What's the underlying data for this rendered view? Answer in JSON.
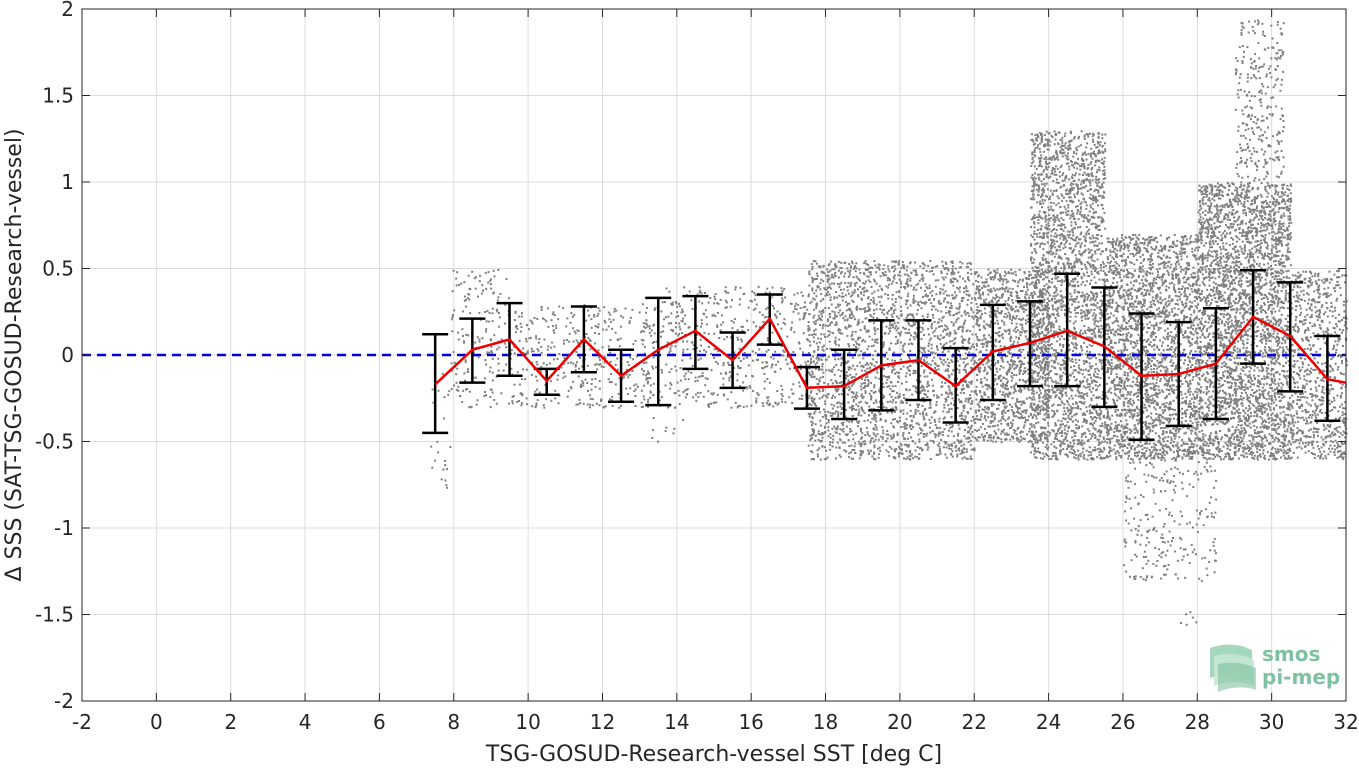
{
  "chart_data": {
    "type": "scatter",
    "xlabel": "TSG-GOSUD-Research-vessel SST [deg C]",
    "ylabel": "Δ SSS (SAT-TSG-GOSUD-Research-vessel)",
    "xlim": [
      -2,
      32
    ],
    "ylim": [
      -2,
      2
    ],
    "x_ticks": [
      -2,
      0,
      2,
      4,
      6,
      8,
      10,
      12,
      14,
      16,
      18,
      20,
      22,
      24,
      26,
      28,
      30,
      32
    ],
    "y_ticks": [
      -2,
      -1.5,
      -1,
      -0.5,
      0,
      0.5,
      1,
      1.5,
      2
    ],
    "x_tick_labels": [
      "-2",
      "0",
      "2",
      "4",
      "6",
      "8",
      "10",
      "12",
      "14",
      "16",
      "18",
      "20",
      "22",
      "24",
      "26",
      "28",
      "30",
      "32"
    ],
    "y_tick_labels": [
      "-2",
      "-1.5",
      "-1",
      "-0.5",
      "0",
      "0.5",
      "1",
      "1.5",
      "2"
    ],
    "grid": true,
    "reference_line": {
      "y": 0,
      "style": "dashed",
      "color": "#0000dd"
    },
    "colors": {
      "scatter": "#7f7f7f",
      "mean_line": "#ee0000",
      "error_bars": "#000000",
      "reference": "#0000dd"
    },
    "binned_stats": {
      "x": [
        7.5,
        8.5,
        9.5,
        10.5,
        11.5,
        12.5,
        13.5,
        14.5,
        15.5,
        16.5,
        17.5,
        18.5,
        19.5,
        20.5,
        21.5,
        22.5,
        23.5,
        24.5,
        25.5,
        26.5,
        27.5,
        28.5,
        29.5,
        30.5,
        31.5,
        32.0
      ],
      "mean": [
        -0.17,
        0.03,
        0.09,
        -0.15,
        0.09,
        -0.12,
        0.03,
        0.14,
        -0.03,
        0.21,
        -0.19,
        -0.18,
        -0.06,
        -0.03,
        -0.18,
        0.02,
        0.07,
        0.14,
        0.05,
        -0.12,
        -0.11,
        -0.05,
        0.22,
        0.11,
        -0.14,
        -0.16
      ],
      "lower": [
        -0.45,
        -0.16,
        -0.12,
        -0.23,
        -0.1,
        -0.27,
        -0.29,
        -0.08,
        -0.19,
        0.06,
        -0.31,
        -0.37,
        -0.32,
        -0.26,
        -0.39,
        -0.26,
        -0.18,
        -0.18,
        -0.3,
        -0.49,
        -0.41,
        -0.37,
        -0.05,
        -0.21,
        -0.38,
        null
      ],
      "upper": [
        0.12,
        0.21,
        0.3,
        -0.08,
        0.28,
        0.03,
        0.33,
        0.34,
        0.13,
        0.35,
        -0.07,
        0.03,
        0.2,
        0.2,
        0.04,
        0.29,
        0.31,
        0.47,
        0.39,
        0.24,
        0.19,
        0.27,
        0.49,
        0.42,
        0.11,
        null
      ]
    },
    "scatter_density": [
      {
        "x": [
          7.3,
          7.9
        ],
        "y": [
          -0.9,
          -0.1
        ],
        "density": 0.1
      },
      {
        "x": [
          7.9,
          9.5
        ],
        "y": [
          -0.3,
          0.5
        ],
        "density": 0.3
      },
      {
        "x": [
          9.5,
          13.5
        ],
        "y": [
          -0.3,
          0.3
        ],
        "density": 0.4
      },
      {
        "x": [
          13.3,
          14.2
        ],
        "y": [
          -0.5,
          -0.35
        ],
        "density": 0.15
      },
      {
        "x": [
          13.5,
          17.5
        ],
        "y": [
          -0.3,
          0.4
        ],
        "density": 0.4
      },
      {
        "x": [
          17.5,
          22.0
        ],
        "y": [
          -0.6,
          0.55
        ],
        "density": 1.0
      },
      {
        "x": [
          22.0,
          24.0
        ],
        "y": [
          -0.5,
          0.5
        ],
        "density": 1.3
      },
      {
        "x": [
          23.5,
          25.5
        ],
        "y": [
          -0.6,
          1.3
        ],
        "density": 1.4
      },
      {
        "x": [
          25.5,
          28.0
        ],
        "y": [
          -0.6,
          0.7
        ],
        "density": 1.6
      },
      {
        "x": [
          26.0,
          28.5
        ],
        "y": [
          -1.3,
          -0.5
        ],
        "density": 0.3
      },
      {
        "x": [
          27.5,
          28.1
        ],
        "y": [
          -1.56,
          -1.48
        ],
        "density": 0.3
      },
      {
        "x": [
          28.0,
          30.5
        ],
        "y": [
          -0.6,
          1.0
        ],
        "density": 1.8
      },
      {
        "x": [
          29.0,
          30.3
        ],
        "y": [
          1.0,
          1.95
        ],
        "density": 0.5
      },
      {
        "x": [
          30.5,
          32.0
        ],
        "y": [
          -0.6,
          0.5
        ],
        "density": 1.0
      }
    ]
  },
  "logo": {
    "line1": "smos",
    "line2": "pi-mep"
  }
}
